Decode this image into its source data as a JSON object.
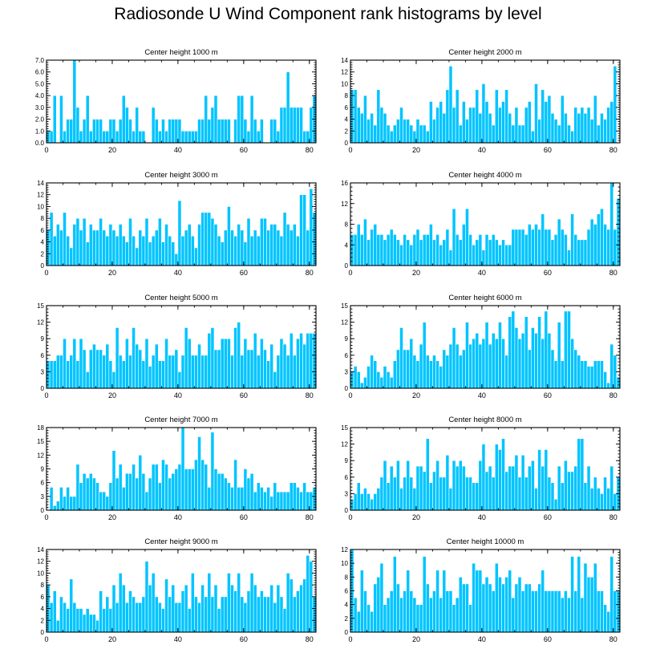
{
  "title": "Radiosonde U Wind Component rank histograms by level",
  "colors": {
    "bar": "#00c4ff",
    "bar_edge": "#ffffff",
    "frame": "#000000"
  },
  "chart_data": [
    {
      "type": "bar",
      "title": "Center height 1000 m",
      "xlim": [
        0,
        82
      ],
      "xticks": [
        0,
        20,
        40,
        60,
        80
      ],
      "ylim": [
        0,
        7
      ],
      "yticks": [
        0,
        1,
        2,
        3,
        4,
        5,
        6,
        7
      ],
      "ytick_labels": [
        "0.0",
        "1.0",
        "2.0",
        "3.0",
        "4.0",
        "5.0",
        "6.0",
        "7.0"
      ],
      "values": [
        1,
        1,
        4,
        0,
        4,
        1,
        2,
        2,
        7,
        3,
        1,
        2,
        4,
        1,
        2,
        2,
        2,
        1,
        1,
        2,
        2,
        1,
        2,
        4,
        3,
        2,
        1,
        3,
        1,
        1,
        0,
        0,
        3,
        2,
        1,
        2,
        1,
        2,
        2,
        2,
        2,
        1,
        1,
        1,
        1,
        1,
        2,
        2,
        4,
        2,
        3,
        4,
        2,
        2,
        2,
        2,
        0,
        2,
        4,
        4,
        2,
        1,
        4,
        2,
        1,
        2,
        0,
        0,
        2,
        2,
        1,
        3,
        3,
        6,
        3,
        3,
        3,
        3,
        1,
        1,
        3,
        4
      ]
    },
    {
      "type": "bar",
      "title": "Center height 2000 m",
      "xlim": [
        0,
        82
      ],
      "xticks": [
        0,
        20,
        40,
        60,
        80
      ],
      "ylim": [
        0,
        14
      ],
      "yticks": [
        0,
        2,
        4,
        6,
        8,
        10,
        12,
        14
      ],
      "ytick_labels": [
        "0",
        "2",
        "4",
        "6",
        "8",
        "10",
        "12",
        "14"
      ],
      "values": [
        9,
        9,
        6,
        5,
        8,
        4,
        5,
        3,
        9,
        6,
        5,
        3,
        2,
        3,
        4,
        6,
        4,
        4,
        3,
        2,
        4,
        3,
        3,
        2,
        7,
        4,
        6,
        7,
        5,
        9,
        13,
        6,
        9,
        3,
        7,
        4,
        6,
        6,
        9,
        5,
        10,
        7,
        5,
        3,
        9,
        6,
        7,
        9,
        5,
        3,
        6,
        3,
        3,
        6,
        7,
        2,
        10,
        4,
        9,
        7,
        8,
        5,
        4,
        3,
        8,
        5,
        3,
        2,
        6,
        5,
        6,
        5,
        6,
        4,
        8,
        3,
        5,
        4,
        6,
        7,
        13
      ]
    },
    {
      "type": "bar",
      "title": "Center height 3000 m",
      "xlim": [
        0,
        82
      ],
      "xticks": [
        0,
        20,
        40,
        60,
        80
      ],
      "ylim": [
        0,
        14
      ],
      "yticks": [
        0,
        2,
        4,
        6,
        8,
        10,
        12,
        14
      ],
      "ytick_labels": [
        "0",
        "2",
        "4",
        "6",
        "8",
        "10",
        "12",
        "14"
      ],
      "values": [
        6,
        9,
        5,
        7,
        6,
        9,
        5,
        3,
        7,
        8,
        6,
        8,
        4,
        7,
        6,
        6,
        8,
        6,
        5,
        7,
        6,
        5,
        7,
        5,
        4,
        8,
        5,
        3,
        6,
        5,
        8,
        4,
        5,
        6,
        8,
        4,
        7,
        5,
        4,
        2,
        11,
        5,
        6,
        7,
        5,
        3,
        7,
        9,
        9,
        9,
        8,
        7,
        5,
        4,
        6,
        10,
        6,
        5,
        7,
        6,
        4,
        8,
        5,
        6,
        5,
        8,
        8,
        6,
        7,
        7,
        6,
        5,
        9,
        7,
        6,
        7,
        5,
        12,
        12,
        6,
        13,
        9
      ]
    },
    {
      "type": "bar",
      "title": "Center height 4000 m",
      "xlim": [
        0,
        82
      ],
      "xticks": [
        0,
        20,
        40,
        60,
        80
      ],
      "ylim": [
        0,
        16
      ],
      "yticks": [
        0,
        4,
        8,
        12,
        16
      ],
      "ytick_labels": [
        "0",
        "4",
        "8",
        "12",
        "16"
      ],
      "values": [
        6,
        6,
        8,
        6,
        9,
        5,
        7,
        8,
        6,
        6,
        5,
        6,
        7,
        6,
        5,
        4,
        6,
        5,
        4,
        6,
        7,
        5,
        6,
        6,
        8,
        5,
        6,
        4,
        5,
        7,
        3,
        11,
        6,
        5,
        8,
        11,
        6,
        4,
        5,
        6,
        3,
        6,
        5,
        6,
        5,
        4,
        5,
        4,
        4,
        7,
        7,
        7,
        7,
        6,
        8,
        7,
        8,
        7,
        10,
        7,
        7,
        5,
        6,
        9,
        7,
        6,
        3,
        10,
        6,
        5,
        5,
        5,
        7,
        9,
        8,
        10,
        11,
        8,
        7,
        16,
        7,
        13
      ]
    },
    {
      "type": "bar",
      "title": "Center height 5000 m",
      "xlim": [
        0,
        82
      ],
      "xticks": [
        0,
        20,
        40,
        60,
        80
      ],
      "ylim": [
        0,
        15
      ],
      "yticks": [
        0,
        3,
        6,
        9,
        12,
        15
      ],
      "ytick_labels": [
        "0",
        "3",
        "6",
        "9",
        "12",
        "15"
      ],
      "values": [
        5,
        5,
        5,
        6,
        6,
        9,
        5,
        6,
        9,
        5,
        9,
        7,
        3,
        7,
        8,
        7,
        7,
        6,
        8,
        5,
        3,
        11,
        6,
        5,
        9,
        6,
        11,
        8,
        7,
        5,
        9,
        4,
        6,
        8,
        5,
        5,
        9,
        6,
        6,
        7,
        3,
        6,
        11,
        9,
        6,
        6,
        8,
        6,
        6,
        10,
        11,
        7,
        7,
        9,
        9,
        9,
        6,
        11,
        12,
        6,
        9,
        7,
        7,
        10,
        6,
        9,
        7,
        5,
        8,
        3,
        6,
        9,
        8,
        6,
        10,
        6,
        9,
        10,
        8,
        10,
        10,
        10
      ]
    },
    {
      "type": "bar",
      "title": "Center height 6000 m",
      "xlim": [
        0,
        82
      ],
      "xticks": [
        0,
        20,
        40,
        60,
        80
      ],
      "ylim": [
        0,
        15
      ],
      "yticks": [
        0,
        3,
        6,
        9,
        12,
        15
      ],
      "ytick_labels": [
        "0",
        "3",
        "6",
        "9",
        "12",
        "15"
      ],
      "values": [
        3,
        4,
        3,
        1,
        2,
        4,
        6,
        5,
        3,
        2,
        4,
        3,
        2,
        5,
        7,
        11,
        7,
        7,
        9,
        6,
        5,
        8,
        12,
        6,
        5,
        6,
        5,
        4,
        7,
        6,
        8,
        11,
        8,
        6,
        7,
        12,
        8,
        9,
        10,
        8,
        9,
        12,
        8,
        10,
        9,
        12,
        9,
        6,
        13,
        14,
        11,
        9,
        10,
        13,
        7,
        11,
        10,
        13,
        9,
        14,
        10,
        7,
        5,
        12,
        5,
        14,
        14,
        9,
        7,
        6,
        5,
        5,
        4,
        4,
        5,
        5,
        5,
        3,
        1,
        8,
        6,
        2
      ]
    },
    {
      "type": "bar",
      "title": "Center height 7000 m",
      "xlim": [
        0,
        82
      ],
      "xticks": [
        0,
        20,
        40,
        60,
        80
      ],
      "ylim": [
        0,
        18
      ],
      "yticks": [
        0,
        3,
        6,
        9,
        12,
        15,
        18
      ],
      "ytick_labels": [
        "0",
        "3",
        "6",
        "9",
        "12",
        "15",
        "18"
      ],
      "values": [
        0,
        5,
        1,
        2,
        5,
        3,
        5,
        3,
        3,
        10,
        6,
        8,
        7,
        8,
        7,
        6,
        4,
        4,
        3,
        6,
        13,
        7,
        10,
        5,
        8,
        8,
        10,
        7,
        12,
        8,
        4,
        7,
        10,
        10,
        6,
        11,
        10,
        7,
        8,
        9,
        10,
        18,
        9,
        9,
        9,
        11,
        16,
        11,
        10,
        5,
        17,
        9,
        8,
        8,
        7,
        6,
        5,
        11,
        5,
        5,
        9,
        7,
        8,
        4,
        6,
        5,
        4,
        5,
        3,
        6,
        4,
        4,
        4,
        4,
        6,
        6,
        5,
        4,
        6,
        4,
        4,
        5
      ]
    },
    {
      "type": "bar",
      "title": "Center height 8000 m",
      "xlim": [
        0,
        82
      ],
      "xticks": [
        0,
        20,
        40,
        60,
        80
      ],
      "ylim": [
        0,
        15
      ],
      "yticks": [
        0,
        3,
        6,
        9,
        12,
        15
      ],
      "ytick_labels": [
        "0",
        "3",
        "6",
        "9",
        "12",
        "15"
      ],
      "values": [
        2,
        3,
        5,
        3,
        4,
        3,
        2,
        3,
        4,
        6,
        9,
        5,
        8,
        6,
        9,
        4,
        6,
        9,
        6,
        4,
        8,
        8,
        7,
        13,
        5,
        7,
        9,
        6,
        6,
        10,
        4,
        9,
        8,
        9,
        8,
        6,
        6,
        5,
        5,
        9,
        12,
        7,
        8,
        6,
        12,
        11,
        13,
        7,
        8,
        8,
        10,
        6,
        10,
        6,
        8,
        9,
        4,
        11,
        8,
        11,
        6,
        5,
        2,
        8,
        5,
        9,
        7,
        7,
        8,
        13,
        13,
        5,
        8,
        4,
        6,
        4,
        3,
        6,
        4,
        8,
        3,
        6
      ]
    },
    {
      "type": "bar",
      "title": "Center height 9000 m",
      "xlim": [
        0,
        82
      ],
      "xticks": [
        0,
        20,
        40,
        60,
        80
      ],
      "ylim": [
        0,
        14
      ],
      "yticks": [
        0,
        2,
        4,
        6,
        8,
        10,
        12,
        14
      ],
      "ytick_labels": [
        "0",
        "2",
        "4",
        "6",
        "8",
        "10",
        "12",
        "14"
      ],
      "values": [
        8,
        5,
        7,
        2,
        6,
        5,
        4,
        9,
        5,
        4,
        4,
        3,
        4,
        3,
        3,
        2,
        7,
        4,
        6,
        4,
        8,
        5,
        10,
        8,
        5,
        7,
        6,
        5,
        5,
        6,
        12,
        8,
        10,
        6,
        5,
        4,
        9,
        6,
        8,
        5,
        5,
        7,
        8,
        4,
        10,
        6,
        5,
        8,
        6,
        10,
        6,
        8,
        4,
        6,
        6,
        10,
        8,
        7,
        10,
        6,
        5,
        7,
        10,
        8,
        6,
        7,
        6,
        6,
        8,
        5,
        8,
        6,
        4,
        10,
        9,
        6,
        7,
        8,
        9,
        13,
        12,
        6
      ]
    },
    {
      "type": "bar",
      "title": "Center height 10000 m",
      "xlim": [
        0,
        82
      ],
      "xticks": [
        0,
        20,
        40,
        60,
        80
      ],
      "ylim": [
        0,
        12
      ],
      "yticks": [
        0,
        2,
        4,
        6,
        8,
        10,
        12
      ],
      "ytick_labels": [
        "0",
        "2",
        "4",
        "6",
        "8",
        "10",
        "12"
      ],
      "values": [
        12,
        5,
        3,
        9,
        6,
        4,
        3,
        7,
        8,
        10,
        4,
        5,
        6,
        11,
        7,
        5,
        6,
        9,
        6,
        5,
        4,
        4,
        11,
        7,
        5,
        6,
        9,
        5,
        9,
        6,
        6,
        4,
        5,
        8,
        7,
        7,
        4,
        10,
        9,
        9,
        7,
        8,
        7,
        6,
        10,
        8,
        7,
        8,
        9,
        5,
        7,
        8,
        6,
        7,
        7,
        6,
        6,
        7,
        9,
        6,
        6,
        6,
        6,
        6,
        5,
        6,
        5,
        11,
        6,
        11,
        5,
        10,
        8,
        8,
        10,
        6,
        6,
        4,
        3,
        11,
        6,
        6
      ]
    }
  ]
}
